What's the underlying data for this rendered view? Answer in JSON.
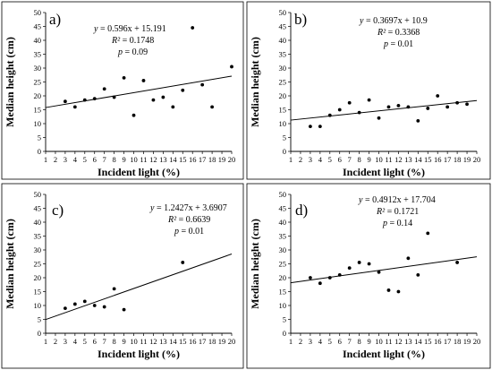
{
  "chart_data": [
    {
      "type": "scatter",
      "panel_label": "a)",
      "xlabel": "Incident light (%)",
      "ylabel": "Median height (cm)",
      "xlim": [
        1,
        20
      ],
      "ylim": [
        0,
        50
      ],
      "xticks": [
        "1",
        "2",
        "3",
        "4",
        "5",
        "6",
        "7",
        "8",
        "9",
        "10",
        "11",
        "12",
        "13",
        "14",
        "15",
        "16",
        "17",
        "18",
        "19",
        "20"
      ],
      "yticks": [
        "0",
        "5",
        "10",
        "15",
        "20",
        "25",
        "30",
        "35",
        "40",
        "45",
        "50"
      ],
      "annotation": {
        "eq_lhs": "y",
        "eq_rhs": " = 0.596x + 15.191",
        "r2_lhs": "R²",
        "r2_rhs": " = 0.1748",
        "p_lhs": "p",
        "p_rhs": " = 0.09"
      },
      "trendline": {
        "slope": 0.596,
        "intercept": 15.191
      },
      "points": [
        {
          "x": 3,
          "y": 18
        },
        {
          "x": 4,
          "y": 16
        },
        {
          "x": 5,
          "y": 18.5
        },
        {
          "x": 6,
          "y": 19
        },
        {
          "x": 7,
          "y": 22.5
        },
        {
          "x": 8,
          "y": 19.5
        },
        {
          "x": 9,
          "y": 26.5
        },
        {
          "x": 10,
          "y": 13
        },
        {
          "x": 11,
          "y": 25.5
        },
        {
          "x": 12,
          "y": 18.5
        },
        {
          "x": 13,
          "y": 19.5
        },
        {
          "x": 14,
          "y": 16
        },
        {
          "x": 15,
          "y": 22
        },
        {
          "x": 16,
          "y": 44.5
        },
        {
          "x": 17,
          "y": 24
        },
        {
          "x": 18,
          "y": 16
        },
        {
          "x": 20,
          "y": 30.5
        }
      ]
    },
    {
      "type": "scatter",
      "panel_label": "b)",
      "xlabel": "Incident light (%)",
      "ylabel": "Median height (cm)",
      "xlim": [
        1,
        20
      ],
      "ylim": [
        0,
        50
      ],
      "xticks": [
        "1",
        "2",
        "3",
        "4",
        "5",
        "6",
        "7",
        "8",
        "9",
        "10",
        "11",
        "12",
        "13",
        "14",
        "15",
        "16",
        "17",
        "18",
        "19",
        "20"
      ],
      "yticks": [
        "0",
        "5",
        "10",
        "15",
        "20",
        "25",
        "30",
        "35",
        "40",
        "45",
        "50"
      ],
      "annotation": {
        "eq_lhs": "y",
        "eq_rhs": " = 0.3697x + 10.9",
        "r2_lhs": "R²",
        "r2_rhs": " = 0.3368",
        "p_lhs": "p",
        "p_rhs": " = 0.01"
      },
      "trendline": {
        "slope": 0.3697,
        "intercept": 10.9
      },
      "points": [
        {
          "x": 3,
          "y": 9
        },
        {
          "x": 4,
          "y": 9
        },
        {
          "x": 5,
          "y": 13
        },
        {
          "x": 6,
          "y": 15
        },
        {
          "x": 7,
          "y": 17.5
        },
        {
          "x": 8,
          "y": 14
        },
        {
          "x": 9,
          "y": 18.5
        },
        {
          "x": 10,
          "y": 12
        },
        {
          "x": 11,
          "y": 16
        },
        {
          "x": 12,
          "y": 16.5
        },
        {
          "x": 13,
          "y": 16
        },
        {
          "x": 14,
          "y": 11
        },
        {
          "x": 15,
          "y": 15.5
        },
        {
          "x": 16,
          "y": 20
        },
        {
          "x": 17,
          "y": 16
        },
        {
          "x": 18,
          "y": 17.5
        },
        {
          "x": 19,
          "y": 17
        }
      ]
    },
    {
      "type": "scatter",
      "panel_label": "c)",
      "xlabel": "Incident light (%)",
      "ylabel": "Median height (cm)",
      "xlim": [
        1,
        20
      ],
      "ylim": [
        0,
        50
      ],
      "xticks": [
        "1",
        "2",
        "3",
        "4",
        "5",
        "6",
        "7",
        "8",
        "9",
        "10",
        "11",
        "12",
        "13",
        "14",
        "15",
        "16",
        "17",
        "18",
        "19",
        "20"
      ],
      "yticks": [
        "0",
        "5",
        "10",
        "15",
        "20",
        "25",
        "30",
        "35",
        "40",
        "45",
        "50"
      ],
      "annotation": {
        "eq_lhs": "y",
        "eq_rhs": " = 1.2427x + 3.6907",
        "r2_lhs": "R²",
        "r2_rhs": " = 0.6639",
        "p_lhs": "p",
        "p_rhs": " = 0.01"
      },
      "trendline": {
        "slope": 1.2427,
        "intercept": 3.6907
      },
      "points": [
        {
          "x": 3,
          "y": 9
        },
        {
          "x": 4,
          "y": 10.5
        },
        {
          "x": 5,
          "y": 11.5
        },
        {
          "x": 6,
          "y": 10
        },
        {
          "x": 7,
          "y": 9.5
        },
        {
          "x": 8,
          "y": 16
        },
        {
          "x": 9,
          "y": 8.5
        },
        {
          "x": 15,
          "y": 25.5
        }
      ]
    },
    {
      "type": "scatter",
      "panel_label": "d)",
      "xlabel": "Incident light (%)",
      "ylabel": "Median height (cm)",
      "xlim": [
        1,
        20
      ],
      "ylim": [
        0,
        50
      ],
      "xticks": [
        "1",
        "2",
        "3",
        "4",
        "5",
        "6",
        "7",
        "8",
        "9",
        "10",
        "11",
        "12",
        "13",
        "14",
        "15",
        "16",
        "17",
        "18",
        "19",
        "20"
      ],
      "yticks": [
        "0",
        "5",
        "10",
        "15",
        "20",
        "25",
        "30",
        "35",
        "40",
        "45",
        "50"
      ],
      "annotation": {
        "eq_lhs": "y",
        "eq_rhs": " = 0.4912x + 17.704",
        "r2_lhs": "R²",
        "r2_rhs": " = 0.1721",
        "p_lhs": "p",
        "p_rhs": " = 0.14"
      },
      "trendline": {
        "slope": 0.4912,
        "intercept": 17.704
      },
      "points": [
        {
          "x": 3,
          "y": 20
        },
        {
          "x": 4,
          "y": 18
        },
        {
          "x": 5,
          "y": 20
        },
        {
          "x": 6,
          "y": 21
        },
        {
          "x": 7,
          "y": 23.5
        },
        {
          "x": 8,
          "y": 25.5
        },
        {
          "x": 9,
          "y": 25
        },
        {
          "x": 10,
          "y": 22
        },
        {
          "x": 11,
          "y": 15.5
        },
        {
          "x": 12,
          "y": 15
        },
        {
          "x": 13,
          "y": 27
        },
        {
          "x": 14,
          "y": 21
        },
        {
          "x": 15,
          "y": 36
        },
        {
          "x": 18,
          "y": 25.5
        }
      ]
    }
  ]
}
